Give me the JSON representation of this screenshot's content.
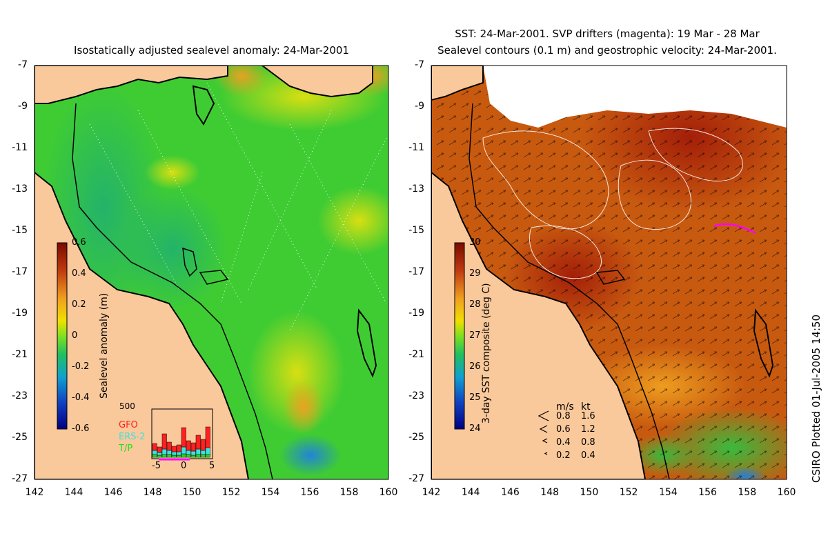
{
  "left_panel": {
    "title": "Isostatically adjusted sealevel anomaly: 24-Mar-2001",
    "colorbar": {
      "title": "Sealevel anomaly (m)",
      "ticks": [
        "0.6",
        "0.4",
        "0.2",
        "0",
        "-0.2",
        "-0.4",
        "-0.6"
      ]
    },
    "inset": {
      "ymax_label": "500",
      "xticks": [
        "-5",
        "0",
        "5"
      ],
      "legend": [
        {
          "name": "GFO",
          "color": "#ff2020"
        },
        {
          "name": "ERS-2",
          "color": "#40e0e0"
        },
        {
          "name": "T/P",
          "color": "#20e020"
        }
      ]
    }
  },
  "right_panel": {
    "title_line1": "SST: 24-Mar-2001. SVP drifters (magenta): 19 Mar - 28 Mar",
    "title_line2": "Sealevel contours (0.1 m) and geostrophic velocity: 24-Mar-2001.",
    "colorbar": {
      "title": "3-day SST composite (deg C)",
      "ticks": [
        "30",
        "29",
        "28",
        "27",
        "26",
        "25",
        "24"
      ]
    },
    "velocity_legend": {
      "header_ms": "m/s",
      "header_kt": "kt",
      "rows": [
        {
          "ms": "0.8",
          "kt": "1.6"
        },
        {
          "ms": "0.6",
          "kt": "1.2"
        },
        {
          "ms": "0.4",
          "kt": "0.8"
        },
        {
          "ms": "0.2",
          "kt": "0.4"
        }
      ]
    }
  },
  "axes": {
    "lat_ticks": [
      "-7",
      "-9",
      "-11",
      "-13",
      "-15",
      "-17",
      "-19",
      "-21",
      "-23",
      "-25",
      "-27"
    ],
    "lon_ticks": [
      "142",
      "144",
      "146",
      "148",
      "150",
      "152",
      "154",
      "156",
      "158",
      "160"
    ]
  },
  "credit": "CSIRO Plotted 01-Jul-2005 14:50",
  "colors": {
    "land": "#f9c89b",
    "ocean_left": "#3fcc33",
    "ocean_right": "#c85a10",
    "drifter": "#ff00ff"
  }
}
